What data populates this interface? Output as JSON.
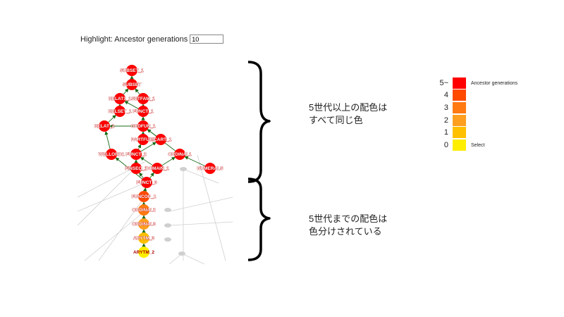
{
  "highlight": {
    "label": "Highlight: Ancestor generations",
    "value": "10"
  },
  "annotations": [
    {
      "lines": [
        "5世代以上の配色は",
        "すべて同じ色"
      ]
    },
    {
      "lines": [
        "5世代までの配色は",
        "色分けされている"
      ]
    }
  ],
  "legend": {
    "rows": [
      {
        "num": "5~",
        "color": "#ff0000",
        "text": "Ancestor generations"
      },
      {
        "num": "4",
        "color": "#ff4a00",
        "text": ""
      },
      {
        "num": "3",
        "color": "#ff7a10",
        "text": ""
      },
      {
        "num": "2",
        "color": "#ff9f20",
        "text": ""
      },
      {
        "num": "1",
        "color": "#ffc000",
        "text": ""
      },
      {
        "num": "0",
        "color": "#ffee00",
        "text": "Select"
      }
    ]
  },
  "graph": {
    "nodes": [
      {
        "id": "n1",
        "label": "SUBSET_1",
        "gen": 5
      },
      {
        "id": "n2",
        "label": "SUBSET",
        "gen": 5
      },
      {
        "id": "n3",
        "label": "RELAT1_1",
        "gen": 5
      },
      {
        "id": "n4",
        "label": "SETFAM_1",
        "gen": 5
      },
      {
        "id": "n5",
        "label": "RELSET_1",
        "gen": 5
      },
      {
        "id": "n6",
        "label": "FUNCT_1",
        "gen": 5
      },
      {
        "id": "n7",
        "label": "RELAT_2",
        "gen": 5
      },
      {
        "id": "n8",
        "label": "ORDFUN_1",
        "gen": 5
      },
      {
        "id": "n9",
        "label": "PARTFUN1",
        "gen": 5
      },
      {
        "id": "n10",
        "label": "MCART_1",
        "gen": 5
      },
      {
        "id": "n11",
        "label": "WELLORD1",
        "gen": 5
      },
      {
        "id": "n12",
        "label": "FUNCT_2",
        "gen": 5
      },
      {
        "id": "n13",
        "label": "ORDINAL1",
        "gen": 5
      },
      {
        "id": "n14",
        "label": "FINSEQ_1",
        "gen": 5
      },
      {
        "id": "n15",
        "label": "DOMAIN_1",
        "gen": 5
      },
      {
        "id": "n16",
        "label": "NUMERALS",
        "gen": 5
      },
      {
        "id": "n17",
        "label": "FUNCT_3",
        "gen": 5
      },
      {
        "id": "n18",
        "label": "FUNCOP_1",
        "gen": 4
      },
      {
        "id": "n19",
        "label": "ORDINAL2",
        "gen": 3
      },
      {
        "id": "n20",
        "label": "ORDINAL3",
        "gen": 2
      },
      {
        "id": "n21",
        "label": "ARYTM_3",
        "gen": 1
      },
      {
        "id": "n22",
        "label": "ARYTM_2",
        "gen": 0
      }
    ],
    "edges": [
      [
        "n2",
        "n1"
      ],
      [
        "n3",
        "n2"
      ],
      [
        "n4",
        "n2"
      ],
      [
        "n5",
        "n3"
      ],
      [
        "n6",
        "n3"
      ],
      [
        "n6",
        "n4"
      ],
      [
        "n7",
        "n5"
      ],
      [
        "n8",
        "n6"
      ],
      [
        "n8",
        "n7"
      ],
      [
        "n9",
        "n8"
      ],
      [
        "n10",
        "n8"
      ],
      [
        "n11",
        "n7"
      ],
      [
        "n12",
        "n9"
      ],
      [
        "n12",
        "n10"
      ],
      [
        "n13",
        "n8"
      ],
      [
        "n14",
        "n12"
      ],
      [
        "n15",
        "n12"
      ],
      [
        "n15",
        "n13"
      ],
      [
        "n16",
        "n13"
      ],
      [
        "n17",
        "n14"
      ],
      [
        "n17",
        "n15"
      ],
      [
        "n17",
        "n11"
      ],
      [
        "n18",
        "n17"
      ],
      [
        "n19",
        "n18"
      ],
      [
        "n20",
        "n19"
      ],
      [
        "n21",
        "n20"
      ],
      [
        "n22",
        "n21"
      ]
    ]
  }
}
